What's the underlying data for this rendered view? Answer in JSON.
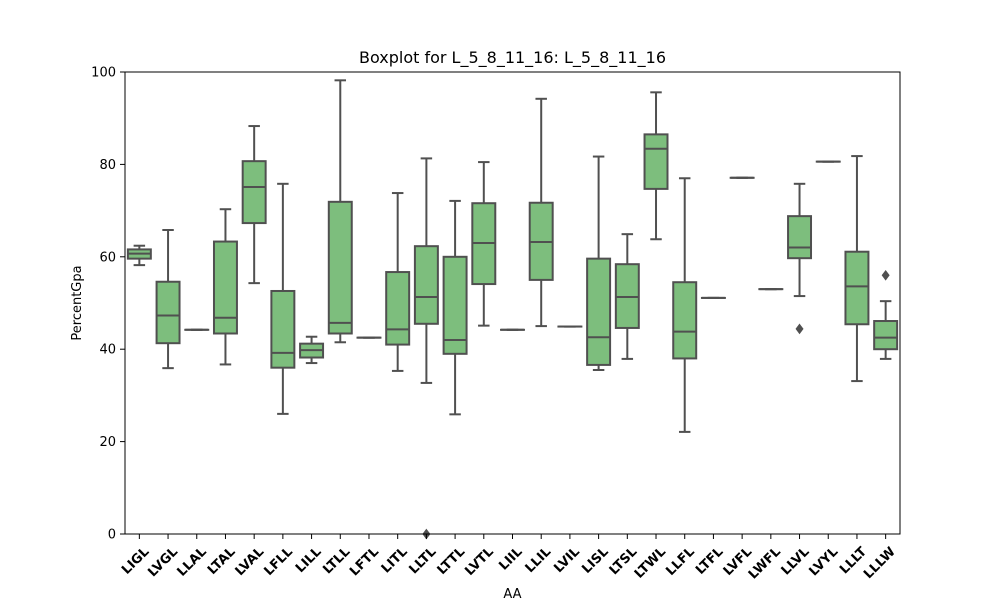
{
  "chart_data": {
    "type": "boxplot",
    "title": "Boxplot for L_5_8_11_16: L_5_8_11_16",
    "xlabel": "AA",
    "ylabel": "PercentGpa",
    "ylim": [
      0,
      100
    ],
    "yticks": [
      0,
      20,
      40,
      60,
      80,
      100
    ],
    "grid": false,
    "box_color": "#7dbe7d",
    "edge_color": "#505050",
    "categories": [
      "LIGL",
      "LVGL",
      "LLAL",
      "LTAL",
      "LVAL",
      "LFLL",
      "LILL",
      "LTLL",
      "LFTL",
      "LITL",
      "LLTL",
      "LTTL",
      "LVTL",
      "LIIL",
      "LLIL",
      "LVIL",
      "LISL",
      "LTSL",
      "LTWL",
      "LLFL",
      "LTFL",
      "LVFL",
      "LWFL",
      "LLVL",
      "LVYL",
      "LLLT",
      "LLLW"
    ],
    "boxes": [
      {
        "whislo": 58.2,
        "q1": 59.6,
        "med": 60.7,
        "q3": 61.6,
        "whishi": 62.4,
        "fliers": []
      },
      {
        "whislo": 35.9,
        "q1": 41.3,
        "med": 47.3,
        "q3": 54.6,
        "whishi": 65.8,
        "fliers": []
      },
      {
        "whislo": 44.2,
        "q1": 44.2,
        "med": 44.2,
        "q3": 44.2,
        "whishi": 44.2,
        "fliers": []
      },
      {
        "whislo": 36.7,
        "q1": 43.4,
        "med": 46.8,
        "q3": 63.3,
        "whishi": 70.3,
        "fliers": []
      },
      {
        "whislo": 54.3,
        "q1": 67.3,
        "med": 75.1,
        "q3": 80.7,
        "whishi": 88.3,
        "fliers": []
      },
      {
        "whislo": 26.0,
        "q1": 36.0,
        "med": 39.2,
        "q3": 52.6,
        "whishi": 75.8,
        "fliers": []
      },
      {
        "whislo": 37.0,
        "q1": 38.2,
        "med": 39.8,
        "q3": 41.2,
        "whishi": 42.7,
        "fliers": []
      },
      {
        "whislo": 41.5,
        "q1": 43.4,
        "med": 45.7,
        "q3": 71.9,
        "whishi": 98.2,
        "fliers": []
      },
      {
        "whislo": 42.5,
        "q1": 42.5,
        "med": 42.5,
        "q3": 42.5,
        "whishi": 42.5,
        "fliers": []
      },
      {
        "whislo": 35.3,
        "q1": 41.0,
        "med": 44.3,
        "q3": 56.7,
        "whishi": 73.8,
        "fliers": []
      },
      {
        "whislo": 32.7,
        "q1": 45.5,
        "med": 51.3,
        "q3": 62.3,
        "whishi": 81.3,
        "fliers": [
          0.0
        ]
      },
      {
        "whislo": 25.9,
        "q1": 39.0,
        "med": 42.0,
        "q3": 60.0,
        "whishi": 72.1,
        "fliers": []
      },
      {
        "whislo": 45.1,
        "q1": 54.1,
        "med": 63.0,
        "q3": 71.6,
        "whishi": 80.5,
        "fliers": []
      },
      {
        "whislo": 44.2,
        "q1": 44.2,
        "med": 44.2,
        "q3": 44.2,
        "whishi": 44.2,
        "fliers": []
      },
      {
        "whislo": 45.0,
        "q1": 55.0,
        "med": 63.2,
        "q3": 71.7,
        "whishi": 94.2,
        "fliers": []
      },
      {
        "whislo": 44.9,
        "q1": 44.9,
        "med": 44.9,
        "q3": 44.9,
        "whishi": 44.9,
        "fliers": []
      },
      {
        "whislo": 35.5,
        "q1": 36.6,
        "med": 42.6,
        "q3": 59.6,
        "whishi": 81.7,
        "fliers": []
      },
      {
        "whislo": 37.9,
        "q1": 44.6,
        "med": 51.3,
        "q3": 58.4,
        "whishi": 64.9,
        "fliers": []
      },
      {
        "whislo": 63.8,
        "q1": 74.7,
        "med": 83.4,
        "q3": 86.5,
        "whishi": 95.6,
        "fliers": []
      },
      {
        "whislo": 22.1,
        "q1": 38.0,
        "med": 43.8,
        "q3": 54.5,
        "whishi": 77.0,
        "fliers": []
      },
      {
        "whislo": 51.1,
        "q1": 51.1,
        "med": 51.1,
        "q3": 51.1,
        "whishi": 51.1,
        "fliers": []
      },
      {
        "whislo": 77.1,
        "q1": 77.1,
        "med": 77.1,
        "q3": 77.1,
        "whishi": 77.1,
        "fliers": []
      },
      {
        "whislo": 53.0,
        "q1": 53.0,
        "med": 53.0,
        "q3": 53.0,
        "whishi": 53.0,
        "fliers": []
      },
      {
        "whislo": 51.5,
        "q1": 59.7,
        "med": 62.0,
        "q3": 68.8,
        "whishi": 75.8,
        "fliers": [
          44.4
        ]
      },
      {
        "whislo": 80.6,
        "q1": 80.6,
        "med": 80.6,
        "q3": 80.6,
        "whishi": 80.6,
        "fliers": []
      },
      {
        "whislo": 33.1,
        "q1": 45.4,
        "med": 53.6,
        "q3": 61.1,
        "whishi": 81.8,
        "fliers": []
      },
      {
        "whislo": 37.9,
        "q1": 40.0,
        "med": 42.5,
        "q3": 46.1,
        "whishi": 50.4,
        "fliers": [
          56.0
        ]
      }
    ]
  }
}
